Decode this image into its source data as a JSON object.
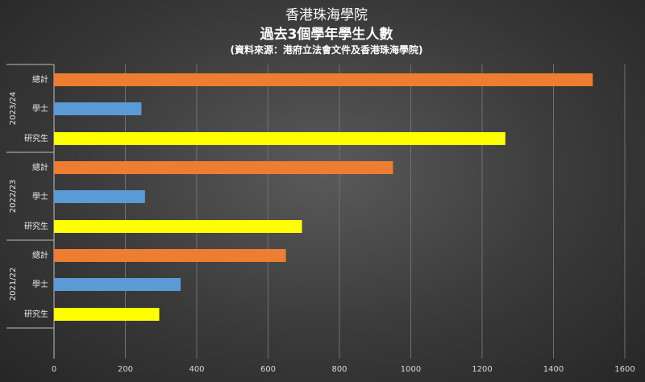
{
  "chart_data": {
    "type": "bar",
    "orientation": "horizontal",
    "title": "香港珠海學院",
    "subtitle": "過去3個學年學生人數",
    "source": "(資料來源：港府立法會文件及香港珠海學院)",
    "xlim": [
      0,
      1600
    ],
    "xticks": [
      "0",
      "200",
      "400",
      "600",
      "800",
      "1000",
      "1200",
      "1400",
      "1600"
    ],
    "grid": true,
    "legend": "none",
    "groups": [
      {
        "label": "2023/24",
        "bars": [
          {
            "category": "總計",
            "value": 1510,
            "color": "#ED7D31"
          },
          {
            "category": "學士",
            "value": 245,
            "color": "#5B9BD5"
          },
          {
            "category": "研究生",
            "value": 1265,
            "color": "#FFFF00"
          }
        ]
      },
      {
        "label": "2022/23",
        "bars": [
          {
            "category": "總計",
            "value": 950,
            "color": "#ED7D31"
          },
          {
            "category": "學士",
            "value": 255,
            "color": "#5B9BD5"
          },
          {
            "category": "研究生",
            "value": 695,
            "color": "#FFFF00"
          }
        ]
      },
      {
        "label": "2021/22",
        "bars": [
          {
            "category": "總計",
            "value": 650,
            "color": "#ED7D31"
          },
          {
            "category": "學士",
            "value": 355,
            "color": "#5B9BD5"
          },
          {
            "category": "研究生",
            "value": 295,
            "color": "#FFFF00"
          }
        ]
      }
    ]
  }
}
